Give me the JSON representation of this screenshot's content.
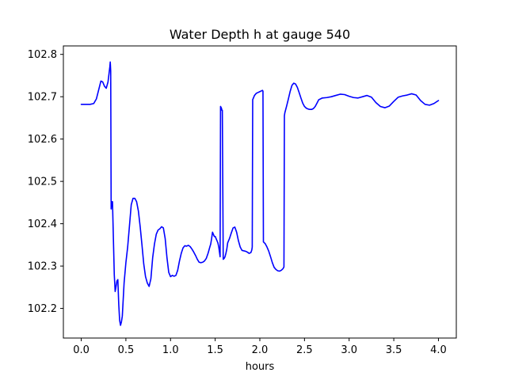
{
  "chart_data": {
    "type": "line",
    "title": "Water Depth h at gauge 540",
    "xlabel": "hours",
    "ylabel": "",
    "xlim": [
      -0.2,
      4.2
    ],
    "ylim": [
      102.13,
      102.82
    ],
    "x_ticks": [
      0.0,
      0.5,
      1.0,
      1.5,
      2.0,
      2.5,
      3.0,
      3.5,
      4.0
    ],
    "x_tick_labels": [
      "0.0",
      "0.5",
      "1.0",
      "1.5",
      "2.0",
      "2.5",
      "3.0",
      "3.5",
      "4.0"
    ],
    "y_ticks": [
      102.2,
      102.3,
      102.4,
      102.5,
      102.6,
      102.7,
      102.8
    ],
    "y_tick_labels": [
      "102.2",
      "102.3",
      "102.4",
      "102.5",
      "102.6",
      "102.7",
      "102.8"
    ],
    "grid": false,
    "legend": "none",
    "series": [
      {
        "color": "#0000ff",
        "x": [
          0.0,
          0.1,
          0.14,
          0.17,
          0.2,
          0.22,
          0.24,
          0.26,
          0.28,
          0.3,
          0.32,
          0.325,
          0.33,
          0.335,
          0.34,
          0.35,
          0.37,
          0.38,
          0.39,
          0.4,
          0.41,
          0.42,
          0.43,
          0.44,
          0.45,
          0.46,
          0.48,
          0.5,
          0.52,
          0.54,
          0.56,
          0.58,
          0.6,
          0.62,
          0.64,
          0.66,
          0.68,
          0.7,
          0.72,
          0.74,
          0.76,
          0.78,
          0.8,
          0.82,
          0.84,
          0.86,
          0.88,
          0.9,
          0.92,
          0.94,
          0.96,
          0.98,
          1.0,
          1.02,
          1.04,
          1.06,
          1.08,
          1.1,
          1.12,
          1.14,
          1.16,
          1.18,
          1.2,
          1.22,
          1.24,
          1.26,
          1.28,
          1.3,
          1.32,
          1.34,
          1.36,
          1.38,
          1.4,
          1.42,
          1.44,
          1.45,
          1.46,
          1.47,
          1.48,
          1.49,
          1.5,
          1.51,
          1.52,
          1.53,
          1.54,
          1.55,
          1.555,
          1.56,
          1.57,
          1.575,
          1.58,
          1.59,
          1.6,
          1.61,
          1.62,
          1.63,
          1.64,
          1.66,
          1.68,
          1.7,
          1.72,
          1.74,
          1.76,
          1.78,
          1.8,
          1.82,
          1.84,
          1.86,
          1.88,
          1.9,
          1.91,
          1.915,
          1.92,
          1.94,
          1.96,
          1.98,
          2.0,
          2.02,
          2.03,
          2.035,
          2.04,
          2.06,
          2.08,
          2.1,
          2.12,
          2.14,
          2.16,
          2.18,
          2.2,
          2.22,
          2.24,
          2.26,
          2.27,
          2.275,
          2.28,
          2.3,
          2.32,
          2.34,
          2.36,
          2.38,
          2.4,
          2.42,
          2.44,
          2.46,
          2.48,
          2.5,
          2.52,
          2.54,
          2.56,
          2.58,
          2.6,
          2.62,
          2.64,
          2.66,
          2.68,
          2.7,
          2.75,
          2.8,
          2.85,
          2.9,
          2.95,
          3.0,
          3.05,
          3.1,
          3.15,
          3.2,
          3.25,
          3.3,
          3.35,
          3.4,
          3.45,
          3.5,
          3.55,
          3.6,
          3.65,
          3.7,
          3.75,
          3.8,
          3.85,
          3.9,
          3.95,
          4.0
        ],
        "y": [
          102.682,
          102.682,
          102.684,
          102.695,
          102.72,
          102.737,
          102.735,
          102.725,
          102.72,
          102.735,
          102.77,
          102.782,
          102.76,
          102.435,
          102.452,
          102.452,
          102.28,
          102.24,
          102.252,
          102.265,
          102.268,
          102.21,
          102.172,
          102.16,
          102.168,
          102.182,
          102.26,
          102.308,
          102.345,
          102.395,
          102.445,
          102.46,
          102.46,
          102.452,
          102.43,
          102.393,
          102.35,
          102.305,
          102.275,
          102.26,
          102.252,
          102.27,
          102.32,
          102.352,
          102.375,
          102.385,
          102.388,
          102.393,
          102.39,
          102.365,
          102.32,
          102.285,
          102.275,
          102.278,
          102.276,
          102.278,
          102.29,
          102.312,
          102.33,
          102.343,
          102.348,
          102.347,
          102.349,
          102.346,
          102.34,
          102.333,
          102.325,
          102.316,
          102.309,
          102.308,
          102.309,
          102.312,
          102.318,
          102.33,
          102.345,
          102.352,
          102.365,
          102.38,
          102.375,
          102.37,
          102.37,
          102.365,
          102.36,
          102.355,
          102.345,
          102.33,
          102.322,
          102.677,
          102.673,
          102.668,
          102.668,
          102.316,
          102.318,
          102.322,
          102.33,
          102.34,
          102.355,
          102.365,
          102.378,
          102.39,
          102.392,
          102.38,
          102.36,
          102.345,
          102.337,
          102.336,
          102.335,
          102.333,
          102.33,
          102.332,
          102.338,
          102.345,
          102.693,
          102.703,
          102.708,
          102.71,
          102.712,
          102.714,
          102.715,
          102.713,
          102.357,
          102.353,
          102.345,
          102.335,
          102.322,
          102.308,
          102.297,
          102.292,
          102.289,
          102.288,
          102.29,
          102.294,
          102.298,
          102.655,
          102.662,
          102.678,
          102.695,
          102.713,
          102.727,
          102.732,
          102.73,
          102.722,
          102.71,
          102.697,
          102.685,
          102.677,
          102.673,
          102.671,
          102.67,
          102.67,
          102.672,
          102.677,
          102.685,
          102.693,
          102.695,
          102.697,
          102.698,
          102.7,
          102.703,
          102.706,
          102.705,
          102.701,
          102.698,
          102.697,
          102.7,
          102.703,
          102.699,
          102.686,
          102.677,
          102.674,
          102.678,
          102.689,
          102.699,
          102.702,
          102.704,
          102.707,
          102.704,
          102.691,
          102.682,
          102.68,
          102.684,
          102.691
        ]
      }
    ]
  }
}
